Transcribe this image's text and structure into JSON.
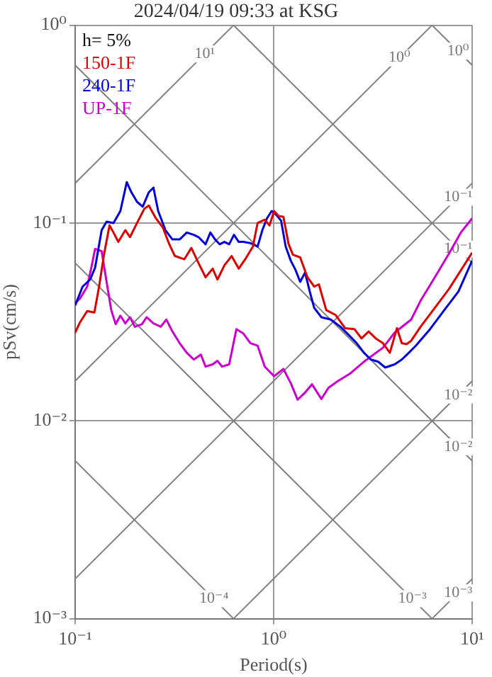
{
  "chart_data": {
    "type": "line",
    "title": "2024/04/19 09:33 at KSG",
    "xlabel": "Period(s)",
    "ylabel": "pSv(cm/s)",
    "log": "xy",
    "grid": true,
    "legend": "top left",
    "marker": "none",
    "line_style": "solid",
    "xlim": [
      0.1,
      10
    ],
    "ylim": [
      0.001,
      1
    ],
    "xticks": [
      {
        "value": 0.1,
        "label": "10⁻¹"
      },
      {
        "value": 1,
        "label": "10⁰"
      },
      {
        "value": 10,
        "label": "10¹"
      }
    ],
    "yticks": [
      {
        "value": 0.001,
        "label": "10⁻³"
      },
      {
        "value": 0.01,
        "label": "10⁻²"
      },
      {
        "value": 0.1,
        "label": "10⁻¹"
      },
      {
        "value": 1,
        "label": "10⁰"
      }
    ],
    "annotations": [
      "h= 5%",
      {
        "text": "10¹",
        "x": 0.45,
        "y": 0.716
      },
      {
        "text": "10⁰",
        "x": 4.3,
        "y": 0.684
      },
      {
        "text": "10⁰",
        "x": 8.5,
        "y": 0.739
      },
      {
        "text": "10⁻¹",
        "x": 8.5,
        "y": 0.135
      },
      {
        "text": "10⁻¹",
        "x": 8.5,
        "y": 0.0739
      },
      {
        "text": "10⁻²",
        "x": 8.5,
        "y": 0.0135
      },
      {
        "text": "10⁻²",
        "x": 8.5,
        "y": 0.00739
      },
      {
        "text": "10⁻⁴",
        "x": 0.5,
        "y": 0.00126
      },
      {
        "text": "10⁻³",
        "x": 5,
        "y": 0.00126
      },
      {
        "text": "10⁻³",
        "x": 8.5,
        "y": 0.00135
      }
    ],
    "series": [
      {
        "type": "line",
        "color": "#808080",
        "x": [
          0.1,
          0.628
        ],
        "values": [
          0.159,
          1
        ]
      },
      {
        "type": "line",
        "color": "#808080",
        "x": [
          0.1,
          6.28
        ],
        "values": [
          0.0159,
          1
        ]
      },
      {
        "type": "line",
        "color": "#808080",
        "x": [
          0.1,
          10
        ],
        "values": [
          0.00159,
          0.159
        ]
      },
      {
        "type": "line",
        "color": "#808080",
        "x": [
          0.628,
          10
        ],
        "values": [
          0.001,
          0.0159
        ]
      },
      {
        "type": "line",
        "color": "#808080",
        "x": [
          6.28,
          10
        ],
        "values": [
          0.001,
          0.00159
        ]
      },
      {
        "type": "line",
        "color": "#808080",
        "x": [
          6.28,
          10
        ],
        "values": [
          1,
          0.628
        ]
      },
      {
        "type": "line",
        "color": "#808080",
        "x": [
          0.628,
          10
        ],
        "values": [
          1,
          0.0628
        ]
      },
      {
        "type": "line",
        "color": "#808080",
        "x": [
          0.1,
          10
        ],
        "values": [
          0.628,
          0.00628
        ]
      },
      {
        "type": "line",
        "color": "#808080",
        "x": [
          0.1,
          6.28
        ],
        "values": [
          0.0628,
          0.001
        ]
      },
      {
        "type": "line",
        "color": "#808080",
        "x": [
          0.1,
          0.628
        ],
        "values": [
          0.00628,
          0.001
        ]
      },
      {
        "name": "150-1F",
        "color": "#dd0000",
        "x": [
          0.1,
          0.106,
          0.115,
          0.125,
          0.132,
          0.14,
          0.149,
          0.156,
          0.165,
          0.179,
          0.189,
          0.205,
          0.223,
          0.235,
          0.255,
          0.277,
          0.298,
          0.318,
          0.355,
          0.385,
          0.418,
          0.454,
          0.493,
          0.521,
          0.565,
          0.614,
          0.667,
          0.724,
          0.786,
          0.83,
          0.902,
          0.953,
          1.005,
          1.06,
          1.12,
          1.19,
          1.25,
          1.36,
          1.48,
          1.6,
          1.69,
          1.84,
          2.05,
          2.29,
          2.55,
          2.77,
          3.01,
          3.27,
          3.55,
          3.85,
          4.18,
          4.42,
          4.67,
          4.93,
          5.5,
          6.49,
          7.64,
          10
        ],
        "values": [
          0.0279,
          0.0316,
          0.0359,
          0.0353,
          0.0477,
          0.07,
          0.0973,
          0.0895,
          0.0803,
          0.092,
          0.0849,
          0.1,
          0.118,
          0.1225,
          0.1057,
          0.0946,
          0.0781,
          0.0681,
          0.0656,
          0.0748,
          0.0628,
          0.0532,
          0.0588,
          0.0518,
          0.0611,
          0.0681,
          0.0588,
          0.0663,
          0.076,
          0.1,
          0.104,
          0.0973,
          0.115,
          0.1086,
          0.1074,
          0.0781,
          0.0692,
          0.067,
          0.0532,
          0.0477,
          0.049,
          0.0363,
          0.0343,
          0.0294,
          0.0291,
          0.0261,
          0.0283,
          0.0261,
          0.0247,
          0.0221,
          0.0294,
          0.0247,
          0.0244,
          0.0254,
          0.0299,
          0.0373,
          0.0464,
          0.0708
        ]
      },
      {
        "name": "240-1F",
        "color": "#0000dd",
        "x": [
          0.1,
          0.109,
          0.119,
          0.126,
          0.136,
          0.144,
          0.156,
          0.169,
          0.182,
          0.192,
          0.205,
          0.219,
          0.235,
          0.248,
          0.262,
          0.285,
          0.309,
          0.336,
          0.365,
          0.396,
          0.418,
          0.454,
          0.48,
          0.507,
          0.535,
          0.565,
          0.597,
          0.631,
          0.667,
          0.704,
          0.764,
          0.83,
          0.877,
          0.926,
          0.977,
          1.033,
          1.09,
          1.15,
          1.22,
          1.29,
          1.36,
          1.44,
          1.52,
          1.6,
          1.74,
          1.94,
          2.17,
          2.42,
          2.62,
          2.85,
          3.09,
          3.36,
          3.65,
          4.07,
          4.42,
          4.8,
          5.21,
          6.14,
          7.24,
          8.53,
          10
        ],
        "values": [
          0.0383,
          0.0477,
          0.0518,
          0.0594,
          0.092,
          0.1017,
          0.1,
          0.115,
          0.161,
          0.143,
          0.128,
          0.121,
          0.143,
          0.151,
          0.115,
          0.092,
          0.0826,
          0.0826,
          0.0895,
          0.0871,
          0.0849,
          0.0781,
          0.0895,
          0.0826,
          0.0781,
          0.0803,
          0.0781,
          0.0871,
          0.0803,
          0.0803,
          0.0791,
          0.076,
          0.092,
          0.1057,
          0.115,
          0.1097,
          0.1028,
          0.076,
          0.0645,
          0.0578,
          0.0504,
          0.0562,
          0.0451,
          0.0373,
          0.0334,
          0.0325,
          0.0299,
          0.0268,
          0.0247,
          0.0221,
          0.0204,
          0.0199,
          0.0186,
          0.0193,
          0.0204,
          0.0221,
          0.024,
          0.0291,
          0.0363,
          0.0451,
          0.0645
        ]
      },
      {
        "name": "UP-1F",
        "color": "#cc00cc",
        "x": [
          0.1,
          0.106,
          0.115,
          0.122,
          0.126,
          0.136,
          0.144,
          0.152,
          0.16,
          0.169,
          0.179,
          0.189,
          0.2,
          0.217,
          0.229,
          0.248,
          0.27,
          0.288,
          0.309,
          0.336,
          0.365,
          0.396,
          0.43,
          0.454,
          0.493,
          0.521,
          0.55,
          0.597,
          0.649,
          0.704,
          0.764,
          0.83,
          0.902,
          1.005,
          1.12,
          1.22,
          1.32,
          1.44,
          1.56,
          1.74,
          1.89,
          2.11,
          2.42,
          2.85,
          3.55,
          4.07,
          4.93,
          5.5,
          6.49,
          7.64,
          8.77,
          10
        ],
        "values": [
          0.0394,
          0.0416,
          0.0477,
          0.0628,
          0.074,
          0.072,
          0.0504,
          0.0363,
          0.0308,
          0.034,
          0.0311,
          0.0334,
          0.0299,
          0.0308,
          0.0334,
          0.0311,
          0.0299,
          0.0325,
          0.0283,
          0.0247,
          0.0221,
          0.0204,
          0.0216,
          0.0188,
          0.0193,
          0.0201,
          0.0188,
          0.0193,
          0.0291,
          0.0276,
          0.0247,
          0.024,
          0.0188,
          0.0168,
          0.0183,
          0.0155,
          0.0128,
          0.0139,
          0.0153,
          0.0129,
          0.0147,
          0.0159,
          0.0173,
          0.0199,
          0.0234,
          0.0279,
          0.0325,
          0.0405,
          0.0532,
          0.07,
          0.0895,
          0.1057
        ]
      }
    ]
  }
}
